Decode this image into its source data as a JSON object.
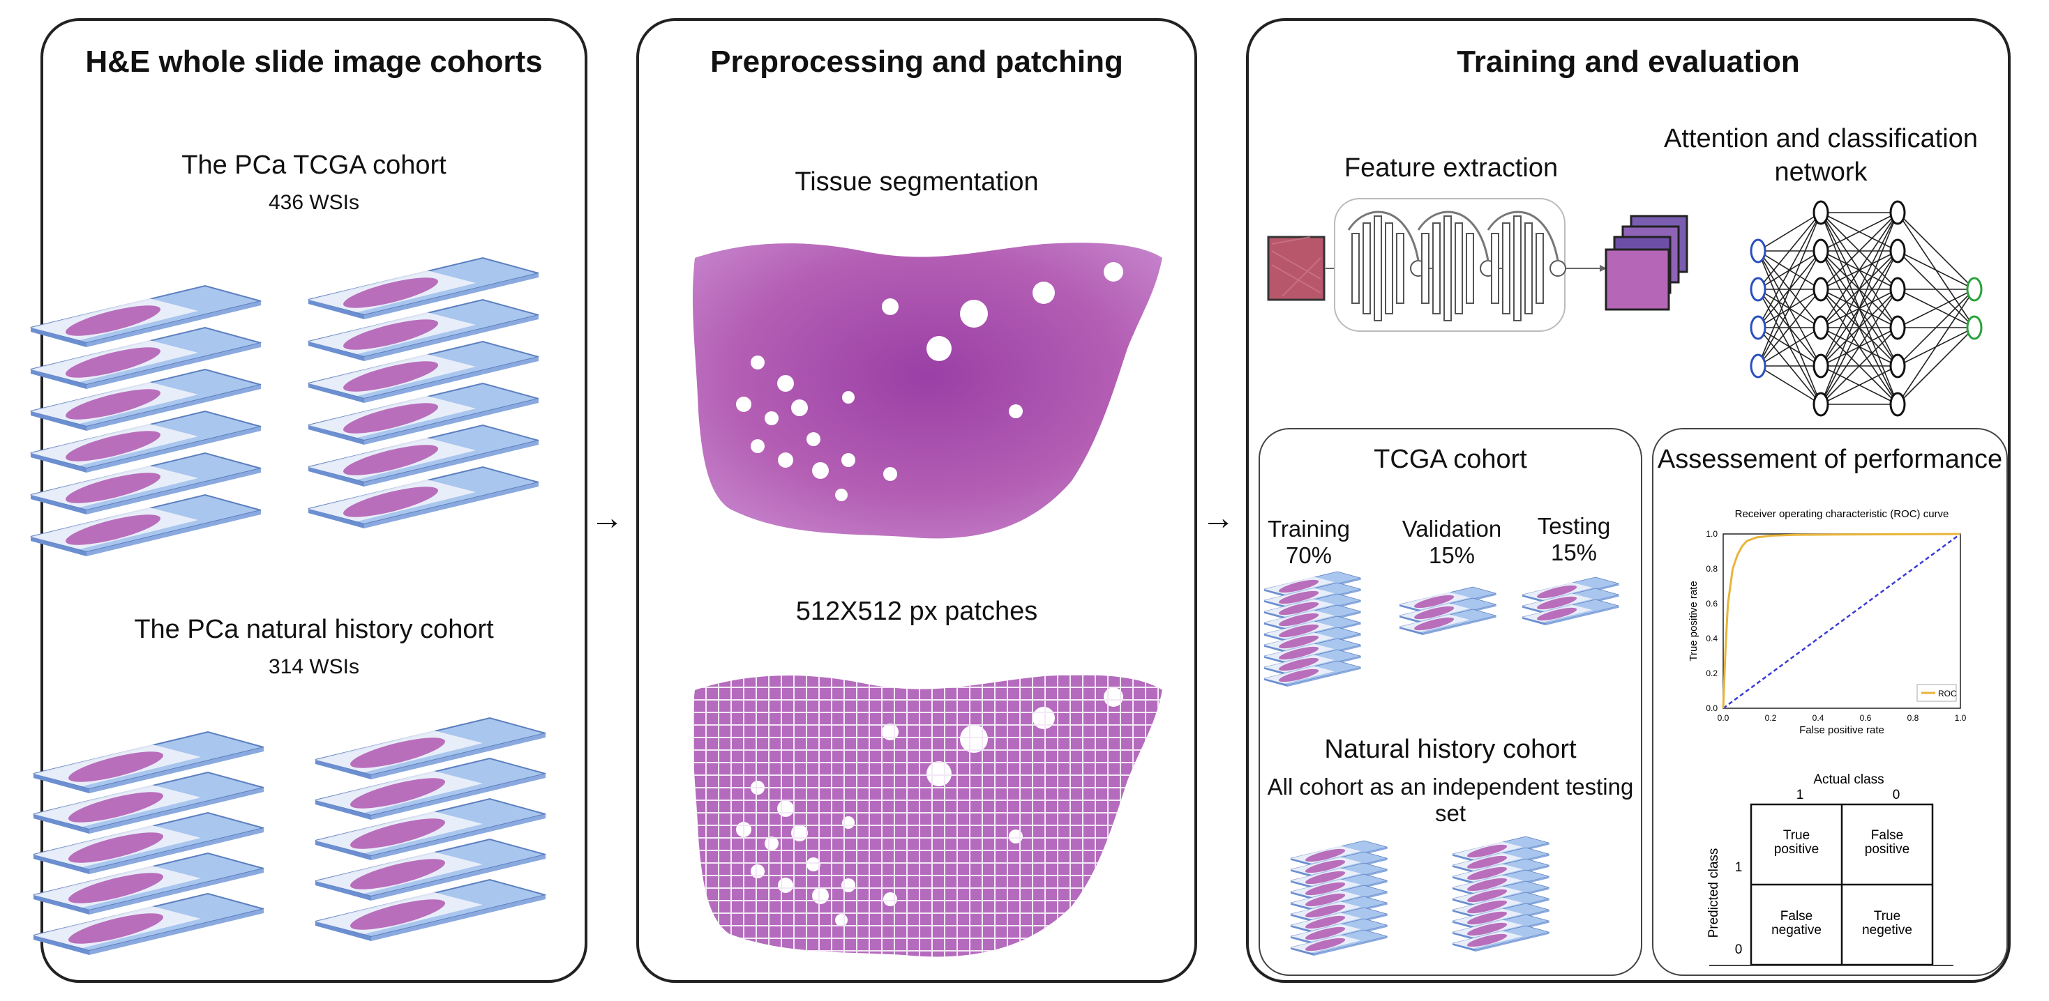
{
  "panels": {
    "cohorts": {
      "title": "H&E whole slide image cohorts",
      "tcga_title": "The PCa TCGA cohort",
      "tcga_count": "436 WSIs",
      "nh_title": "The PCa natural history cohort",
      "nh_count": "314 WSIs"
    },
    "preprocessing": {
      "title": "Preprocessing and patching",
      "seg_label": "Tissue segmentation",
      "patch_label": "512X512 px patches"
    },
    "training": {
      "title": "Training and evaluation",
      "feature_label": "Feature extraction",
      "attention_label_1": "Attention and classification",
      "attention_label_2": "network",
      "tcga": {
        "title": "TCGA cohort",
        "training": "Training",
        "training_pct": "70%",
        "validation": "Validation",
        "validation_pct": "15%",
        "testing": "Testing",
        "testing_pct": "15%"
      },
      "natural": {
        "title": "Natural history cohort",
        "desc_1": "All cohort as an independent testing",
        "desc_2": "set"
      },
      "performance": {
        "title": "Assessement of performance",
        "roc_title": "Receiver operating characteristic (ROC) curve",
        "roc_xlabel": "False positive rate",
        "roc_ylabel": "True positive rate",
        "roc_legend": "ROC",
        "roc_ticks": [
          "0.0",
          "0.2",
          "0.4",
          "0.6",
          "0.8",
          "1.0"
        ],
        "cm_actual": "Actual class",
        "cm_predicted": "Predicted class",
        "cm_one": "1",
        "cm_zero": "0",
        "cells": {
          "tp_1": "True",
          "tp_2": "positive",
          "fp_1": "False",
          "fp_2": "positive",
          "fn_1": "False",
          "fn_2": "negative",
          "tn_1": "True",
          "tn_2": "negetive"
        }
      }
    }
  },
  "arrows": [
    "→",
    "→"
  ],
  "colors": {
    "tissue": "#b45fb4",
    "slide": "#a9c6ee",
    "roc_curve": "#e8b53a",
    "diagonal": "#3a3ad8",
    "input_node": "#2a4fbf",
    "output_node": "#2aa13a"
  },
  "chart_data": {
    "type": "line",
    "title": "Receiver operating characteristic (ROC) curve",
    "xlabel": "False positive rate",
    "ylabel": "True positive rate",
    "xlim": [
      0,
      1
    ],
    "ylim": [
      0,
      1
    ],
    "series": [
      {
        "name": "ROC",
        "x": [
          0.0,
          0.01,
          0.02,
          0.04,
          0.06,
          0.08,
          0.1,
          0.14,
          0.2,
          0.3,
          0.5,
          0.7,
          1.0
        ],
        "values": [
          0.0,
          0.35,
          0.6,
          0.8,
          0.88,
          0.93,
          0.96,
          0.98,
          0.99,
          0.995,
          0.997,
          0.998,
          1.0
        ]
      },
      {
        "x": [
          0,
          1
        ],
        "values": [
          0,
          1
        ]
      }
    ],
    "legend": "bottom-right"
  }
}
